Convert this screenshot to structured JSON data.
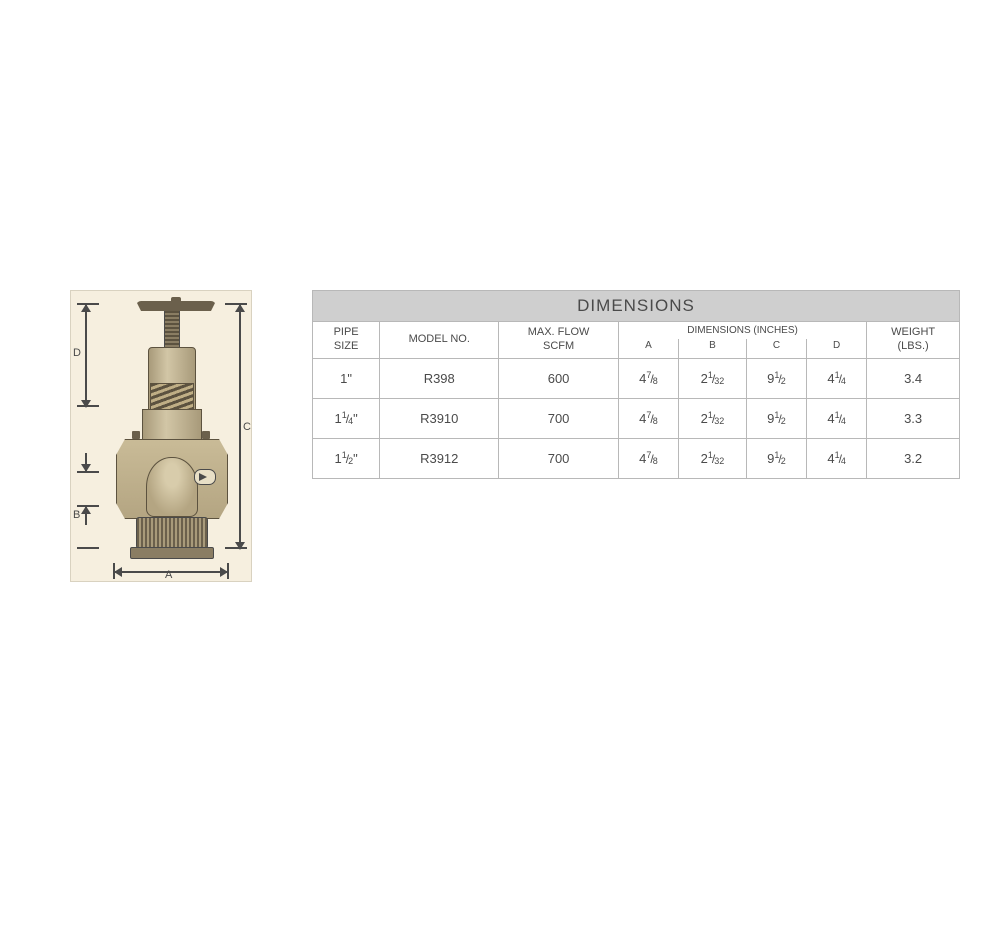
{
  "diagram": {
    "labels": {
      "A": "A",
      "B": "B",
      "C": "C",
      "D": "D"
    },
    "background_color": "#f6efdf",
    "line_color": "#4a4a4a"
  },
  "table": {
    "title": "DIMENSIONS",
    "title_bg": "#cfcfcf",
    "border_color": "#b8b8b8",
    "text_color": "#4a4a4a",
    "headers": {
      "pipe_size": "PIPE\nSIZE",
      "model_no": "MODEL NO.",
      "max_flow": "MAX. FLOW\nSCFM",
      "dims_group": "DIMENSIONS (INCHES)",
      "A": "A",
      "B": "B",
      "C": "C",
      "D": "D",
      "weight": "WEIGHT\n(LBS.)"
    },
    "rows": [
      {
        "pipe_size": {
          "whole": "1",
          "num": "",
          "den": "",
          "suffix": "\""
        },
        "model_no": "R398",
        "max_flow": "600",
        "A": {
          "whole": "4",
          "num": "7",
          "den": "8"
        },
        "B": {
          "whole": "2",
          "num": "1",
          "den": "32"
        },
        "C": {
          "whole": "9",
          "num": "1",
          "den": "2"
        },
        "D": {
          "whole": "4",
          "num": "1",
          "den": "4"
        },
        "weight": "3.4"
      },
      {
        "pipe_size": {
          "whole": "1",
          "num": "1",
          "den": "4",
          "suffix": "\""
        },
        "model_no": "R3910",
        "max_flow": "700",
        "A": {
          "whole": "4",
          "num": "7",
          "den": "8"
        },
        "B": {
          "whole": "2",
          "num": "1",
          "den": "32"
        },
        "C": {
          "whole": "9",
          "num": "1",
          "den": "2"
        },
        "D": {
          "whole": "4",
          "num": "1",
          "den": "4"
        },
        "weight": "3.3"
      },
      {
        "pipe_size": {
          "whole": "1",
          "num": "1",
          "den": "2",
          "suffix": "\""
        },
        "model_no": "R3912",
        "max_flow": "700",
        "A": {
          "whole": "4",
          "num": "7",
          "den": "8"
        },
        "B": {
          "whole": "2",
          "num": "1",
          "den": "32"
        },
        "C": {
          "whole": "9",
          "num": "1",
          "den": "2"
        },
        "D": {
          "whole": "4",
          "num": "1",
          "den": "4"
        },
        "weight": "3.2"
      }
    ]
  }
}
